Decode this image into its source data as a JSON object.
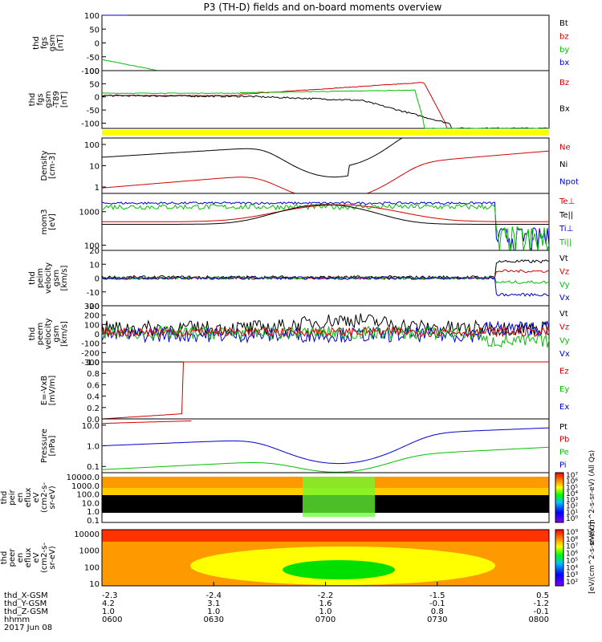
{
  "chart_data": {
    "type": "line",
    "title": "P3 (TH-D) fields and on-board moments overview",
    "x_ticks": [
      "0600",
      "0630",
      "0700",
      "0730",
      "0800"
    ],
    "panels": [
      {
        "id": "fgs_gsm",
        "ylabel": [
          "thd",
          "fgs",
          "gsm",
          "[nT]"
        ],
        "ylim": [
          -100,
          100
        ],
        "scale": "linear",
        "yticks": [
          "100",
          "50",
          "0",
          "-50",
          "-100"
        ],
        "legend": [
          {
            "label": "Bt",
            "color": "#000000"
          },
          {
            "label": "bz",
            "color": "#d00000"
          },
          {
            "label": "by",
            "color": "#00c000"
          },
          {
            "label": "bx",
            "color": "#0000d0"
          }
        ]
      },
      {
        "id": "fgs_gsm_dev",
        "ylabel": [
          "thd",
          "fgs",
          "gsm",
          "-T89",
          "[nT]"
        ],
        "ylim": [
          -120,
          100
        ],
        "scale": "linear",
        "yticks": [
          "100",
          "50",
          "0",
          "-50",
          "-100"
        ],
        "legend": [
          {
            "label": "Bz",
            "color": "#d00000"
          },
          {
            "label": "Bx",
            "color": "#000000"
          }
        ]
      },
      {
        "id": "density",
        "ylabel": [
          "Density",
          "[cm-3]"
        ],
        "ylim": [
          0.5,
          200
        ],
        "scale": "log",
        "yticks": [
          "100",
          "10",
          "1"
        ],
        "legend": [
          {
            "label": "Ne",
            "color": "#d00000"
          },
          {
            "label": "Ni",
            "color": "#000000"
          },
          {
            "label": "Npot",
            "color": "#0000d0"
          }
        ]
      },
      {
        "id": "temperature",
        "ylabel": [
          "mom3",
          "[eV]"
        ],
        "ylim": [
          70,
          3500
        ],
        "scale": "log",
        "yticks": [
          "1000",
          "100"
        ],
        "legend": [
          {
            "label": "Te⊥",
            "color": "#d00000"
          },
          {
            "label": "Te||",
            "color": "#000000"
          },
          {
            "label": "Ti⊥",
            "color": "#0000d0"
          },
          {
            "label": "Ti||",
            "color": "#00c000"
          }
        ]
      },
      {
        "id": "ion_velocity",
        "ylabel": [
          "thd",
          "peim",
          "velocity",
          "gsm",
          "[km/s]"
        ],
        "ylim": [
          -20,
          20
        ],
        "scale": "linear",
        "yticks": [
          "20",
          "10",
          "0",
          "-10",
          "-20"
        ],
        "legend": [
          {
            "label": "Vt",
            "color": "#000000"
          },
          {
            "label": "Vz",
            "color": "#d00000"
          },
          {
            "label": "Vy",
            "color": "#00c000"
          },
          {
            "label": "Vx",
            "color": "#0000d0"
          }
        ]
      },
      {
        "id": "electron_velocity",
        "ylabel": [
          "thd",
          "peem",
          "velocity",
          "gsm",
          "[km/s]"
        ],
        "ylim": [
          -300,
          300
        ],
        "scale": "linear",
        "yticks": [
          "300",
          "200",
          "100",
          "0",
          "-100",
          "-200",
          "-300"
        ],
        "legend": [
          {
            "label": "Vt",
            "color": "#000000"
          },
          {
            "label": "Vz",
            "color": "#d00000"
          },
          {
            "label": "Vy",
            "color": "#00c000"
          },
          {
            "label": "Vx",
            "color": "#0000d0"
          }
        ]
      },
      {
        "id": "efield",
        "ylabel": [
          "E=-VxB",
          "[mV/m]"
        ],
        "ylim": [
          0,
          1
        ],
        "scale": "linear",
        "yticks": [
          "1.0",
          "0.8",
          "0.6",
          "0.4",
          "0.2",
          "0.0"
        ],
        "legend": [
          {
            "label": "Ez",
            "color": "#d00000"
          },
          {
            "label": "Ey",
            "color": "#00c000"
          },
          {
            "label": "Ex",
            "color": "#0000d0"
          }
        ]
      },
      {
        "id": "pressure",
        "ylabel": [
          "Pressure",
          "[nPa]"
        ],
        "ylim": [
          0.05,
          20
        ],
        "scale": "log",
        "yticks": [
          "10.0",
          "1.0",
          "0.1"
        ],
        "legend": [
          {
            "label": "Pt",
            "color": "#000000"
          },
          {
            "label": "Pb",
            "color": "#d00000"
          },
          {
            "label": "Pe",
            "color": "#00c000"
          },
          {
            "label": "Pi",
            "color": "#0000d0"
          }
        ]
      }
    ],
    "spectrograms": [
      {
        "id": "ion_eflux",
        "ylabel": [
          "thd",
          "peir",
          "en",
          "eflux",
          "eV",
          "(cm2-s-",
          "sr-eV)"
        ],
        "yticks": [
          "10000.0",
          "1000.0",
          "100.0",
          "10.0",
          "1.0",
          "0.1"
        ],
        "colorbar_ticks": [
          "10⁷",
          "10⁶",
          "10⁵",
          "10⁴",
          "10³",
          "10²",
          "10¹",
          "10⁰"
        ],
        "colorbar_label": "eV/(cm^2-s-sr-eV) (All Qs)"
      },
      {
        "id": "electron_eflux",
        "ylabel": [
          "thd",
          "peer",
          "en",
          "eflux",
          "eV",
          "(cm2-s-",
          "sr-eV)"
        ],
        "yticks": [
          "10000",
          "1000",
          "100",
          "10"
        ],
        "colorbar_ticks": [
          "10⁹",
          "10⁸",
          "10⁷",
          "10⁶",
          "10⁵",
          "10⁴",
          "10³",
          "10²"
        ],
        "colorbar_label": "[eV/(cm^2-s-sr-eV)]"
      }
    ],
    "ephemeris": {
      "labels": [
        "thd_X-GSM",
        "thd_Y-GSM",
        "thd_Z-GSM",
        "hhmm",
        "2017 Jun 08"
      ],
      "x": [
        "-2.3",
        "-2.4",
        "-2.2",
        "-1.5",
        "0.5"
      ],
      "y": [
        "4.2",
        "3.1",
        "1.6",
        "-0.1",
        "-1.2"
      ],
      "z": [
        "1.0",
        "1.0",
        "1.0",
        "0.8",
        "-0.1"
      ],
      "hhmm": [
        "0600",
        "0630",
        "0700",
        "0730",
        "0800"
      ]
    }
  }
}
